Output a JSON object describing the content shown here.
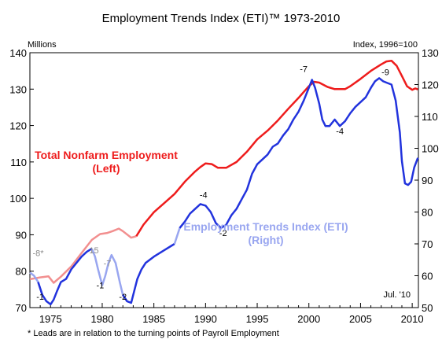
{
  "chart_data": {
    "type": "line",
    "title": "Employment Trends Index (ETI)™  1973-2010",
    "left_axis_label": "Millions",
    "right_axis_label": "Index, 1996=100",
    "left_ylim": [
      70,
      140
    ],
    "left_ticks": [
      "70",
      "80",
      "90",
      "100",
      "110",
      "120",
      "130",
      "140"
    ],
    "right_ylim": [
      50,
      130
    ],
    "right_ticks": [
      "50",
      "60",
      "70",
      "80",
      "90",
      "100",
      "110",
      "120",
      "130"
    ],
    "xlim": [
      1973,
      2010.6
    ],
    "x_ticks": [
      "1975",
      "1980",
      "1985",
      "1990",
      "1995",
      "2000",
      "2005",
      "2010"
    ],
    "grid": false,
    "date_note": "Jul. '10",
    "footnote": "* Leads are in relation to the turning points of Payroll Employment",
    "colors": {
      "nonfarm": "#ee1c1c",
      "nonfarm_fade": "#f28f8f",
      "eti": "#2233dd",
      "eti_fade": "#99a6f0"
    },
    "series": [
      {
        "name": "Total Nonfarm Employment",
        "label_line1": "Total Nonfarm Employment",
        "label_line2": "(Left)",
        "axis": "left",
        "x": [
          1973.0,
          1974.0,
          1974.8,
          1975.3,
          1976.0,
          1977.0,
          1978.0,
          1979.0,
          1979.8,
          1980.5,
          1981.0,
          1981.6,
          1982.0,
          1982.8,
          1983.3,
          1984.0,
          1985.0,
          1986.0,
          1987.0,
          1988.0,
          1989.0,
          1989.5,
          1990.0,
          1990.6,
          1991.2,
          1992.0,
          1993.0,
          1994.0,
          1995.0,
          1996.0,
          1997.0,
          1998.0,
          1999.0,
          2000.0,
          2000.5,
          2001.0,
          2001.8,
          2002.5,
          2003.5,
          2004.0,
          2005.0,
          2006.0,
          2007.0,
          2007.5,
          2008.0,
          2008.5,
          2009.0,
          2009.5,
          2010.0,
          2010.3,
          2010.55
        ],
        "y": [
          77.8,
          78.3,
          78.6,
          76.8,
          78.5,
          81.3,
          85.0,
          88.6,
          90.2,
          90.5,
          91.0,
          91.7,
          91.0,
          89.2,
          89.6,
          92.8,
          96.2,
          98.7,
          101.2,
          104.6,
          107.4,
          108.6,
          109.6,
          109.4,
          108.4,
          108.4,
          110.0,
          112.8,
          116.2,
          118.6,
          121.4,
          124.6,
          127.6,
          130.8,
          132.0,
          131.8,
          130.6,
          130.0,
          130.0,
          130.8,
          132.8,
          135.0,
          136.8,
          137.6,
          137.8,
          136.4,
          133.6,
          130.8,
          129.8,
          130.2,
          129.9
        ]
      },
      {
        "name": "Employment Trends Index (ETI)",
        "label_line1": "Employment Trends Index (ETI)",
        "label_line2": "(Right)",
        "axis": "right",
        "x": [
          1973.0,
          1973.4,
          1973.8,
          1974.2,
          1974.6,
          1975.0,
          1975.3,
          1975.6,
          1976.0,
          1976.5,
          1977.0,
          1977.5,
          1978.0,
          1978.5,
          1979.0,
          1979.3,
          1979.6,
          1980.0,
          1980.3,
          1980.6,
          1980.9,
          1981.3,
          1981.7,
          1982.0,
          1982.4,
          1982.8,
          1983.0,
          1983.4,
          1983.8,
          1984.2,
          1985.0,
          1986.0,
          1987.0,
          1987.5,
          1988.0,
          1988.5,
          1989.0,
          1989.5,
          1990.0,
          1990.5,
          1991.0,
          1991.5,
          1992.0,
          1992.5,
          1993.0,
          1993.5,
          1994.0,
          1994.5,
          1995.0,
          1995.5,
          1996.0,
          1996.5,
          1997.0,
          1997.5,
          1998.0,
          1998.5,
          1999.0,
          1999.5,
          2000.0,
          2000.3,
          2000.6,
          2001.0,
          2001.3,
          2001.6,
          2002.0,
          2002.5,
          2003.0,
          2003.5,
          2004.0,
          2004.5,
          2005.0,
          2005.5,
          2006.0,
          2006.4,
          2006.8,
          2007.2,
          2007.6,
          2008.0,
          2008.4,
          2008.8,
          2009.0,
          2009.3,
          2009.6,
          2009.9,
          2010.2,
          2010.55
        ],
        "y": [
          61.0,
          60.0,
          58.0,
          54.0,
          52.0,
          51.0,
          52.5,
          55.0,
          58.0,
          59.0,
          62.0,
          64.0,
          66.0,
          67.5,
          68.5,
          66.0,
          62.0,
          57.0,
          60.0,
          64.0,
          66.5,
          64.0,
          58.0,
          54.0,
          52.0,
          51.5,
          54.0,
          59.0,
          62.0,
          64.0,
          66.0,
          68.0,
          70.0,
          75.0,
          77.0,
          79.5,
          81.0,
          82.5,
          82.0,
          80.0,
          76.5,
          75.0,
          76.0,
          79.0,
          81.0,
          84.0,
          87.0,
          92.0,
          95.0,
          96.5,
          98.0,
          100.5,
          101.5,
          104.0,
          106.0,
          109.0,
          111.5,
          115.0,
          119.0,
          121.5,
          119.0,
          114.0,
          109.0,
          107.0,
          107.0,
          109.0,
          107.0,
          108.5,
          111.0,
          113.0,
          114.5,
          116.0,
          119.0,
          121.0,
          122.0,
          121.0,
          120.5,
          120.0,
          115.0,
          105.0,
          96.0,
          89.0,
          88.5,
          89.5,
          94.0,
          97.0
        ]
      }
    ],
    "lead_labels": [
      {
        "text": "-8*",
        "x": 1973.8,
        "y": 66.2,
        "axis": "right",
        "color": "#8c8c8c"
      },
      {
        "text": "-1",
        "x": 1974.0,
        "y": 52.5,
        "axis": "right",
        "color": "#000000"
      },
      {
        "text": "15",
        "x": 1979.2,
        "y": 67.0,
        "axis": "right",
        "color": "#8c8c8c"
      },
      {
        "text": "-7",
        "x": 1980.5,
        "y": 63.0,
        "axis": "right",
        "color": "#8c8c8c"
      },
      {
        "text": "-1",
        "x": 1979.8,
        "y": 56.0,
        "axis": "right",
        "color": "#000000"
      },
      {
        "text": "-2",
        "x": 1982.0,
        "y": 52.5,
        "axis": "right",
        "color": "#000000"
      },
      {
        "text": "-4",
        "x": 1989.8,
        "y": 84.5,
        "axis": "right",
        "color": "#000000"
      },
      {
        "text": "-2",
        "x": 1991.7,
        "y": 72.5,
        "axis": "right",
        "color": "#000000"
      },
      {
        "text": "-7",
        "x": 1999.5,
        "y": 124.0,
        "axis": "right",
        "color": "#000000"
      },
      {
        "text": "-4",
        "x": 2003.0,
        "y": 104.5,
        "axis": "right",
        "color": "#000000"
      },
      {
        "text": "-9",
        "x": 2007.4,
        "y": 123.0,
        "axis": "right",
        "color": "#000000"
      }
    ]
  }
}
